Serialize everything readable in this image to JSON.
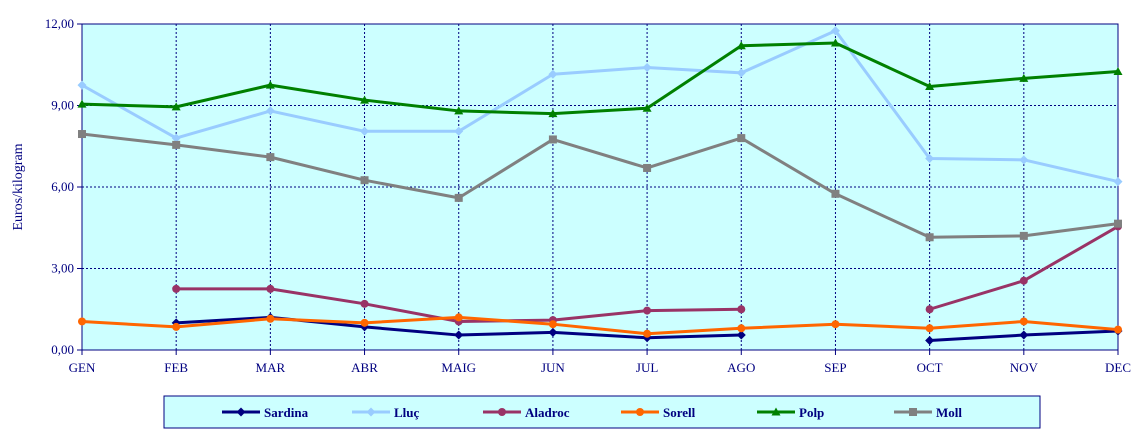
{
  "chart_data": {
    "type": "line",
    "title": "",
    "xlabel": "",
    "ylabel": "Euros/kilogram",
    "categories": [
      "GEN",
      "FEB",
      "MAR",
      "ABR",
      "MAIG",
      "JUN",
      "JUL",
      "AGO",
      "SEP",
      "OCT",
      "NOV",
      "DEC"
    ],
    "ylim": [
      0,
      12
    ],
    "yticks": [
      0,
      3,
      6,
      9,
      12
    ],
    "ytick_labels": [
      "0,00",
      "3,00",
      "6,00",
      "9,00",
      "12,00"
    ],
    "grid": true,
    "plot_background": "#ccffff",
    "grid_color": "#000080",
    "legend_position": "bottom",
    "series": [
      {
        "name": "Sardina",
        "color": "#000080",
        "marker": "diamond",
        "values": [
          null,
          1.0,
          1.2,
          0.85,
          0.55,
          0.65,
          0.45,
          0.55,
          null,
          0.35,
          0.55,
          0.7
        ]
      },
      {
        "name": "Lluç",
        "color": "#99ccff",
        "marker": "diamond",
        "values": [
          9.75,
          7.8,
          8.8,
          8.05,
          8.05,
          10.15,
          10.4,
          10.2,
          11.75,
          7.05,
          7.0,
          6.2
        ]
      },
      {
        "name": "Aladroc",
        "color": "#993366",
        "marker": "circle",
        "values": [
          null,
          2.25,
          2.25,
          1.7,
          1.05,
          1.1,
          1.45,
          1.5,
          null,
          1.5,
          2.55,
          4.55
        ]
      },
      {
        "name": "Sorell",
        "color": "#ff6600",
        "marker": "circle",
        "values": [
          1.05,
          0.85,
          1.15,
          1.0,
          1.2,
          0.95,
          0.6,
          0.8,
          0.95,
          0.8,
          1.05,
          0.75
        ]
      },
      {
        "name": "Polp",
        "color": "#008000",
        "marker": "triangle",
        "values": [
          9.05,
          8.95,
          9.75,
          9.2,
          8.8,
          8.7,
          8.9,
          11.2,
          11.3,
          9.7,
          10.0,
          10.25
        ]
      },
      {
        "name": "Moll",
        "color": "#808080",
        "marker": "square",
        "values": [
          7.95,
          7.55,
          7.1,
          6.25,
          5.6,
          7.75,
          6.7,
          7.8,
          5.75,
          4.15,
          4.2,
          4.65
        ]
      }
    ]
  }
}
